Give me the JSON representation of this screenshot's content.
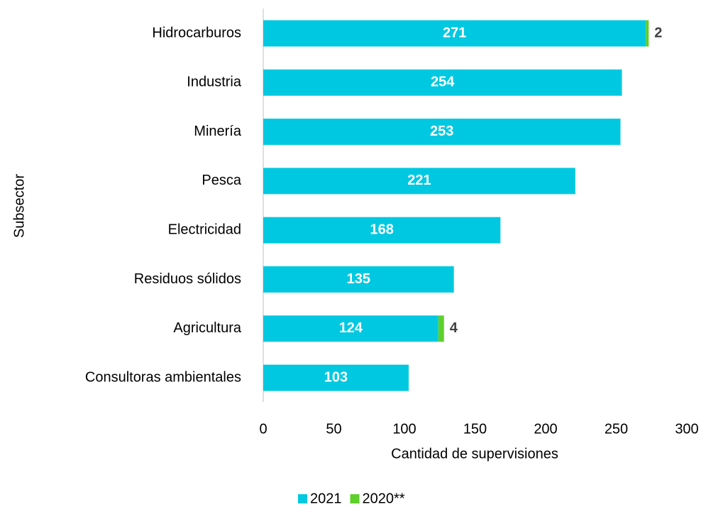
{
  "chart_data": {
    "type": "stacked-horizontal-bar",
    "y_label": "Subsector",
    "x_label": "Cantidad de supervisiones",
    "categories": [
      "Hidrocarburos",
      "Industria",
      "Minería",
      "Pesca",
      "Electricidad",
      "Residuos sólidos",
      "Agricultura",
      "Consultoras ambientales"
    ],
    "series": [
      {
        "name": "2021",
        "color": "#00c8e1",
        "values": [
          271,
          254,
          253,
          221,
          168,
          135,
          124,
          103
        ]
      },
      {
        "name": "2020**",
        "color": "#5fcf2a",
        "values": [
          2,
          null,
          null,
          null,
          null,
          null,
          4,
          null
        ]
      }
    ],
    "xlim": [
      0,
      300
    ],
    "xticks": [
      0,
      50,
      100,
      150,
      200,
      250,
      300
    ],
    "grid": false,
    "legend": "bottom"
  }
}
